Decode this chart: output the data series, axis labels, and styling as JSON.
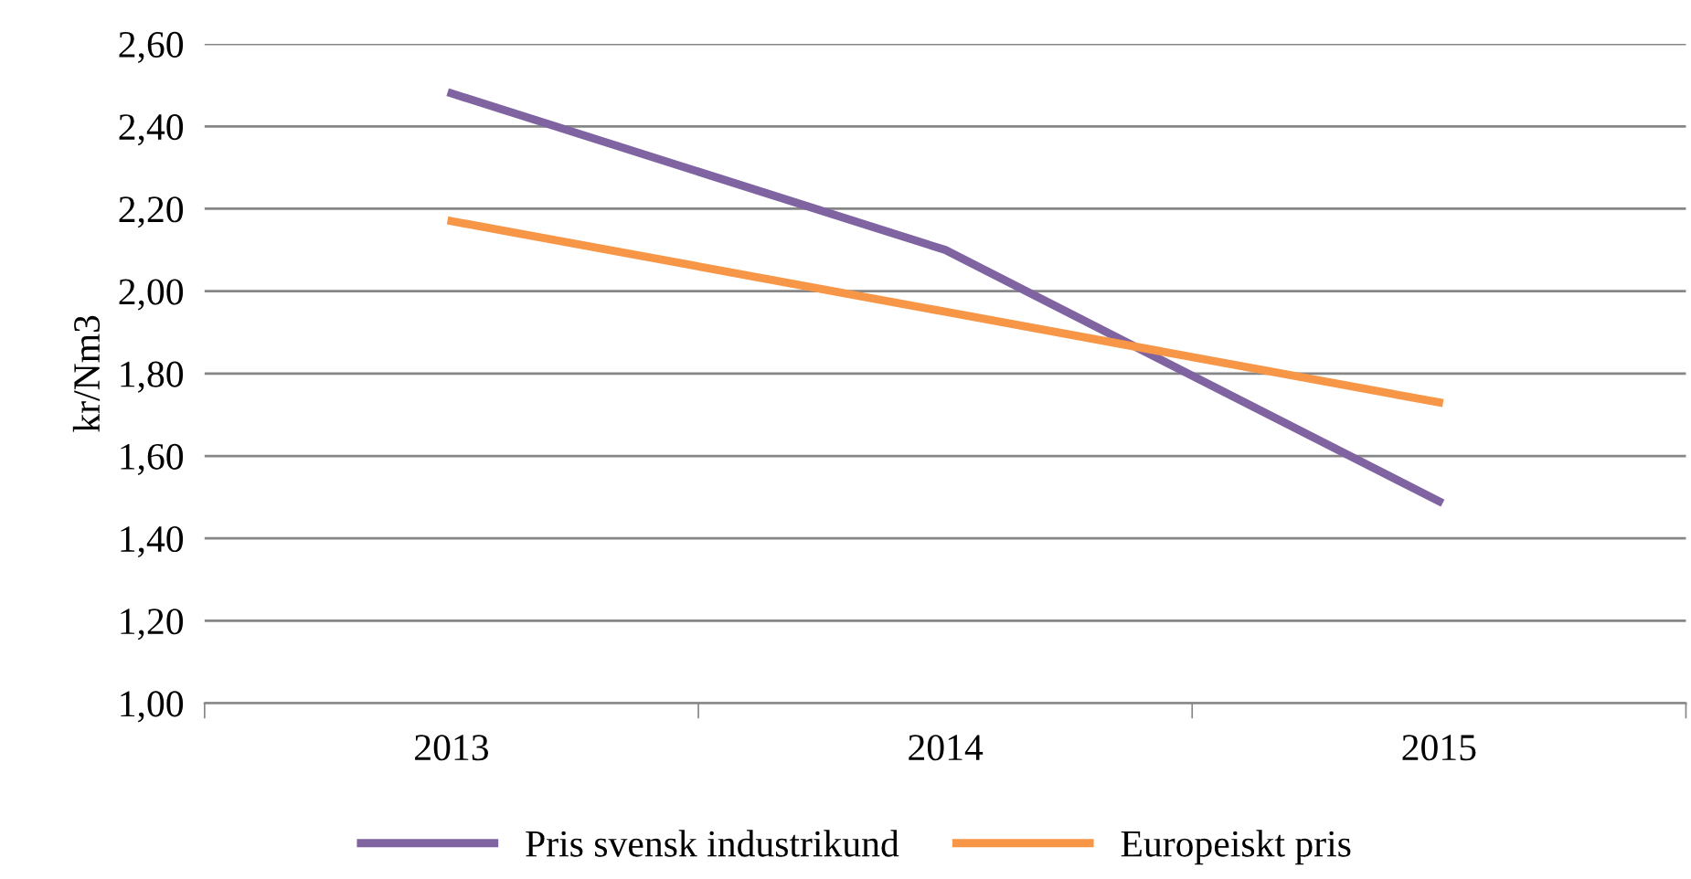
{
  "chart_data": {
    "type": "line",
    "ylabel": "kr/Nm3",
    "categories": [
      "2013",
      "2014",
      "2015"
    ],
    "series": [
      {
        "name": "Pris svensk industrikund",
        "color": "#8064a2",
        "values": [
          2.48,
          2.1,
          1.49
        ]
      },
      {
        "name": "Europeiskt pris",
        "color": "#f79646",
        "values": [
          2.17,
          1.95,
          1.73
        ]
      }
    ],
    "ylim": [
      1.0,
      2.6
    ],
    "yticks": [
      {
        "value": 1.0,
        "label": "1,00"
      },
      {
        "value": 1.2,
        "label": "1,20"
      },
      {
        "value": 1.4,
        "label": "1,40"
      },
      {
        "value": 1.6,
        "label": "1,60"
      },
      {
        "value": 1.8,
        "label": "1,80"
      },
      {
        "value": 2.0,
        "label": "2,00"
      },
      {
        "value": 2.2,
        "label": "2,20"
      },
      {
        "value": 2.4,
        "label": "2,40"
      },
      {
        "value": 2.6,
        "label": "2,60"
      }
    ],
    "grid": "y",
    "legend": "bottom",
    "marker": "none",
    "line_style": "solid"
  }
}
